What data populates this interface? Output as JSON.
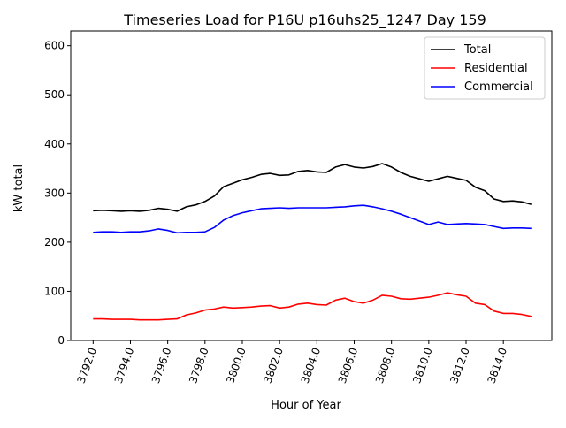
{
  "chart_data": {
    "type": "line",
    "title": "Timeseries Load for P16U p16uhs25_1247  Day 159",
    "xlabel": "Hour of Year",
    "ylabel": "kW total",
    "xlim": [
      3790.8,
      3816.6
    ],
    "ylim": [
      0,
      630
    ],
    "xticks": [
      "3792.0",
      "3794.0",
      "3796.0",
      "3798.0",
      "3800.0",
      "3802.0",
      "3804.0",
      "3806.0",
      "3808.0",
      "3810.0",
      "3812.0",
      "3814.0"
    ],
    "xtick_values": [
      3792,
      3794,
      3796,
      3798,
      3800,
      3802,
      3804,
      3806,
      3808,
      3810,
      3812,
      3814
    ],
    "yticks": [
      "0",
      "100",
      "200",
      "300",
      "400",
      "500",
      "600"
    ],
    "ytick_values": [
      0,
      100,
      200,
      300,
      400,
      500,
      600
    ],
    "grid": false,
    "legend_placement": "top-right",
    "x": [
      3792,
      3792.5,
      3793,
      3793.5,
      3794,
      3794.5,
      3795,
      3795.5,
      3796,
      3796.5,
      3797,
      3797.5,
      3798,
      3798.5,
      3799,
      3799.5,
      3800,
      3800.5,
      3801,
      3801.5,
      3802,
      3802.5,
      3803,
      3803.5,
      3804,
      3804.5,
      3805,
      3805.5,
      3806,
      3806.5,
      3807,
      3807.5,
      3808,
      3808.5,
      3809,
      3809.5,
      3810,
      3810.5,
      3811,
      3811.5,
      3812,
      3812.5,
      3813,
      3813.5,
      3814,
      3814.5,
      3815,
      3815.5
    ],
    "series": [
      {
        "name": "Total",
        "color": "#000000",
        "values": [
          264,
          265,
          264,
          263,
          264,
          263,
          265,
          269,
          267,
          263,
          272,
          276,
          283,
          294,
          313,
          320,
          327,
          332,
          338,
          340,
          336,
          337,
          344,
          346,
          343,
          342,
          353,
          358,
          353,
          351,
          354,
          360,
          353,
          342,
          334,
          329,
          324,
          329,
          334,
          330,
          326,
          312,
          305,
          288,
          283,
          284,
          282,
          277
        ]
      },
      {
        "name": "Residential",
        "color": "#ff0000",
        "values": [
          44,
          44,
          43,
          43,
          43,
          42,
          42,
          42,
          43,
          44,
          52,
          56,
          62,
          64,
          68,
          66,
          67,
          68,
          70,
          71,
          66,
          68,
          74,
          76,
          73,
          72,
          82,
          86,
          79,
          76,
          82,
          92,
          90,
          85,
          84,
          86,
          88,
          92,
          97,
          93,
          90,
          76,
          73,
          60,
          55,
          55,
          53,
          49
        ]
      },
      {
        "name": "Commercial",
        "color": "#0000ff",
        "values": [
          220,
          221,
          221,
          220,
          221,
          221,
          223,
          227,
          224,
          219,
          220,
          220,
          221,
          230,
          245,
          254,
          260,
          264,
          268,
          269,
          270,
          269,
          270,
          270,
          270,
          270,
          271,
          272,
          274,
          275,
          272,
          268,
          263,
          257,
          250,
          243,
          236,
          241,
          236,
          237,
          238,
          237,
          236,
          232,
          228,
          229,
          229,
          228
        ]
      }
    ]
  }
}
